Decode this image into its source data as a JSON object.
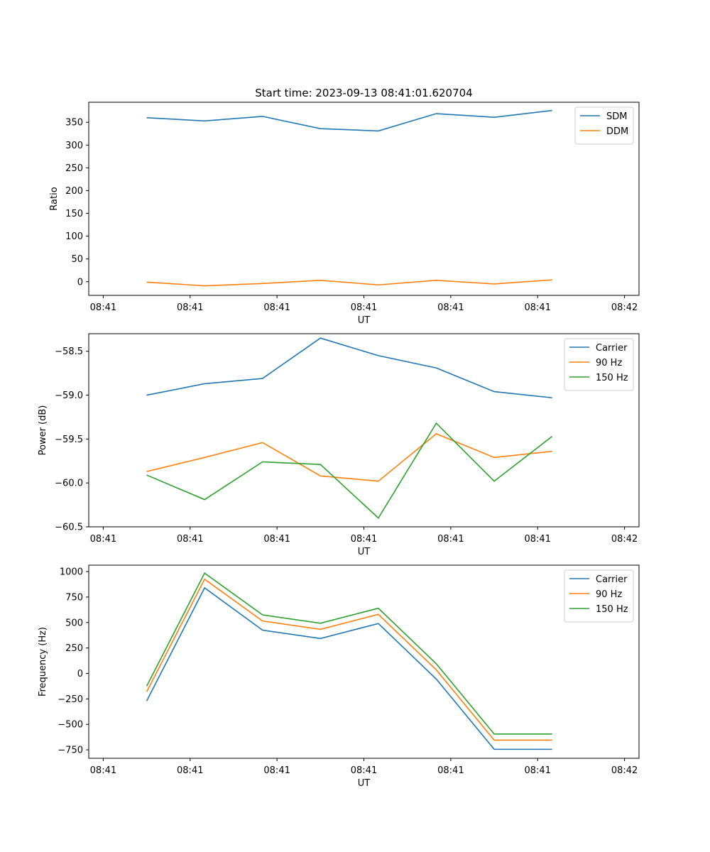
{
  "figure_title": "Start time: 2023-09-13 08:41:01.620704",
  "colors": {
    "blue": "#1f77b4",
    "orange": "#ff7f0e",
    "green": "#2ca02c"
  },
  "chart_data": [
    {
      "type": "line",
      "xlabel": "UT",
      "ylabel": "Ratio",
      "xlim": [
        0,
        9.5
      ],
      "ylim": [
        -30,
        394
      ],
      "xticks": [
        0.25,
        1.75,
        3.25,
        4.75,
        6.25,
        7.75,
        9.25
      ],
      "xticklabels": [
        "08:41",
        "08:41",
        "08:41",
        "08:41",
        "08:41",
        "08:41",
        "08:42"
      ],
      "yticks": [
        0,
        50,
        100,
        150,
        200,
        250,
        300,
        350
      ],
      "yticklabels": [
        "0",
        "50",
        "100",
        "150",
        "200",
        "250",
        "300",
        "350"
      ],
      "x": [
        1,
        2,
        3,
        4,
        5,
        6,
        7,
        8
      ],
      "legend_position": "top-right",
      "series": [
        {
          "name": "SDM",
          "color": "#1f77b4",
          "values": [
            360,
            353,
            363,
            336,
            331,
            369,
            361,
            376
          ]
        },
        {
          "name": "DDM",
          "color": "#ff7f0e",
          "values": [
            -1,
            -9,
            -4,
            3,
            -7,
            3,
            -5,
            4
          ]
        }
      ]
    },
    {
      "type": "line",
      "xlabel": "UT",
      "ylabel": "Power (dB)",
      "xlim": [
        0,
        9.5
      ],
      "ylim": [
        -60.5,
        -58.3
      ],
      "xticks": [
        0.25,
        1.75,
        3.25,
        4.75,
        6.25,
        7.75,
        9.25
      ],
      "xticklabels": [
        "08:41",
        "08:41",
        "08:41",
        "08:41",
        "08:41",
        "08:41",
        "08:42"
      ],
      "yticks": [
        -60.5,
        -60.0,
        -59.5,
        -59.0,
        -58.5
      ],
      "yticklabels": [
        "−60.5",
        "−60.0",
        "−59.5",
        "−59.0",
        "−58.5"
      ],
      "x": [
        1,
        2,
        3,
        4,
        5,
        6,
        7,
        8
      ],
      "legend_position": "top-right",
      "series": [
        {
          "name": "Carrier",
          "color": "#1f77b4",
          "values": [
            -59.0,
            -58.87,
            -58.81,
            -58.35,
            -58.55,
            -58.69,
            -58.96,
            -59.03
          ]
        },
        {
          "name": "90 Hz",
          "color": "#ff7f0e",
          "values": [
            -59.87,
            -59.71,
            -59.54,
            -59.92,
            -59.98,
            -59.44,
            -59.71,
            -59.64
          ]
        },
        {
          "name": "150 Hz",
          "color": "#2ca02c",
          "values": [
            -59.91,
            -60.19,
            -59.76,
            -59.79,
            -60.4,
            -59.32,
            -59.98,
            -59.47
          ]
        }
      ]
    },
    {
      "type": "line",
      "xlabel": "UT",
      "ylabel": "Frequency (Hz)",
      "xlim": [
        0,
        9.5
      ],
      "ylim": [
        -833,
        1063
      ],
      "xticks": [
        0.25,
        1.75,
        3.25,
        4.75,
        6.25,
        7.75,
        9.25
      ],
      "xticklabels": [
        "08:41",
        "08:41",
        "08:41",
        "08:41",
        "08:41",
        "08:41",
        "08:42"
      ],
      "yticks": [
        -750,
        -500,
        -250,
        0,
        250,
        500,
        750,
        1000
      ],
      "yticklabels": [
        "−750",
        "−500",
        "−250",
        "0",
        "250",
        "500",
        "750",
        "1000"
      ],
      "x": [
        1,
        2,
        3,
        4,
        5,
        6,
        7,
        8
      ],
      "legend_position": "top-right",
      "series": [
        {
          "name": "Carrier",
          "color": "#1f77b4",
          "values": [
            -270,
            840,
            425,
            343,
            490,
            -55,
            -745,
            -745
          ]
        },
        {
          "name": "90 Hz",
          "color": "#ff7f0e",
          "values": [
            -180,
            925,
            515,
            433,
            580,
            35,
            -655,
            -655
          ]
        },
        {
          "name": "150 Hz",
          "color": "#2ca02c",
          "values": [
            -125,
            985,
            575,
            493,
            640,
            95,
            -595,
            -595
          ]
        }
      ]
    }
  ]
}
